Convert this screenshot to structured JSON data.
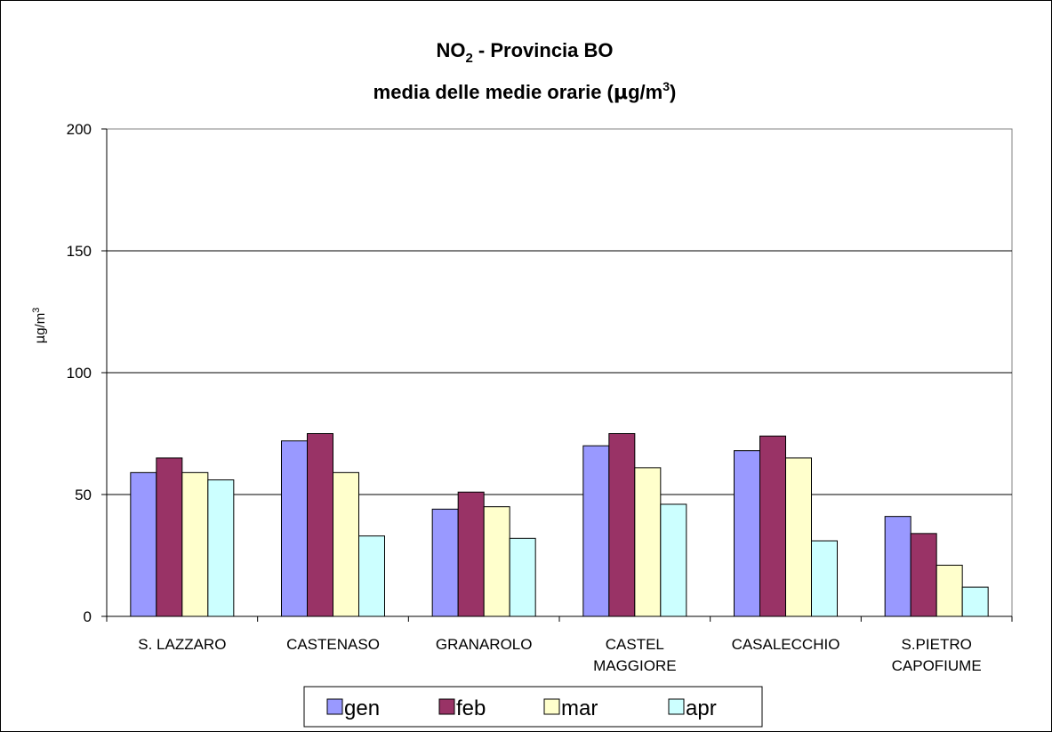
{
  "chart_data": {
    "type": "bar",
    "title": {
      "line1": {
        "main": "NO",
        "sub": "2",
        "rest": " - Provincia BO"
      },
      "line2": {
        "before": "media delle medie orarie (",
        "mu": "μ",
        "after": "g/m",
        "sup": "3",
        "close": ")"
      }
    },
    "ylabel": {
      "mu": "μ",
      "text": "g/m",
      "sup": "3"
    },
    "ylim": [
      0,
      200
    ],
    "yticks": [
      "0",
      "50",
      "100",
      "150",
      "200"
    ],
    "ytick_values": [
      0,
      50,
      100,
      150,
      200
    ],
    "grid": true,
    "legend_position": "bottom",
    "categories": [
      [
        "S. LAZZARO"
      ],
      [
        "CASTENASO"
      ],
      [
        "GRANAROLO"
      ],
      [
        "CASTEL",
        "MAGGIORE"
      ],
      [
        "CASALECCHIO"
      ],
      [
        "S.PIETRO",
        "CAPOFIUME"
      ]
    ],
    "series": [
      {
        "name": "gen",
        "color": "#9999ff",
        "values": [
          59,
          72,
          44,
          70,
          68,
          41
        ]
      },
      {
        "name": "feb",
        "color": "#993366",
        "values": [
          65,
          75,
          51,
          75,
          74,
          34
        ]
      },
      {
        "name": "mar",
        "color": "#ffffcc",
        "values": [
          59,
          59,
          45,
          61,
          65,
          21
        ]
      },
      {
        "name": "apr",
        "color": "#ccffff",
        "values": [
          56,
          33,
          32,
          46,
          31,
          12
        ]
      }
    ]
  }
}
